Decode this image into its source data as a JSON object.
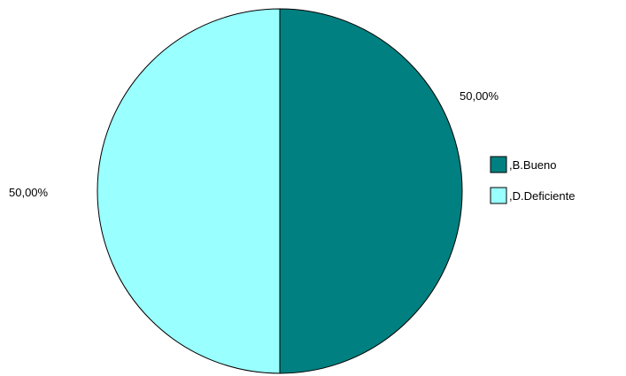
{
  "chart_data": {
    "type": "pie",
    "title": "",
    "slices": [
      {
        "label": ",B.Bueno",
        "value": 50.0,
        "display": "50,00%",
        "color": "#008080"
      },
      {
        "label": ",D.Deficiente",
        "value": 50.0,
        "display": "50,00%",
        "color": "#99FFFF"
      }
    ],
    "start_angle_deg": 0,
    "direction": "clockwise",
    "outline_color": "#000000",
    "legend": {
      "position": "right",
      "items": [
        {
          "label": ",B.Bueno",
          "color": "#008080"
        },
        {
          "label": ",D.Deficiente",
          "color": "#99FFFF"
        }
      ]
    }
  }
}
